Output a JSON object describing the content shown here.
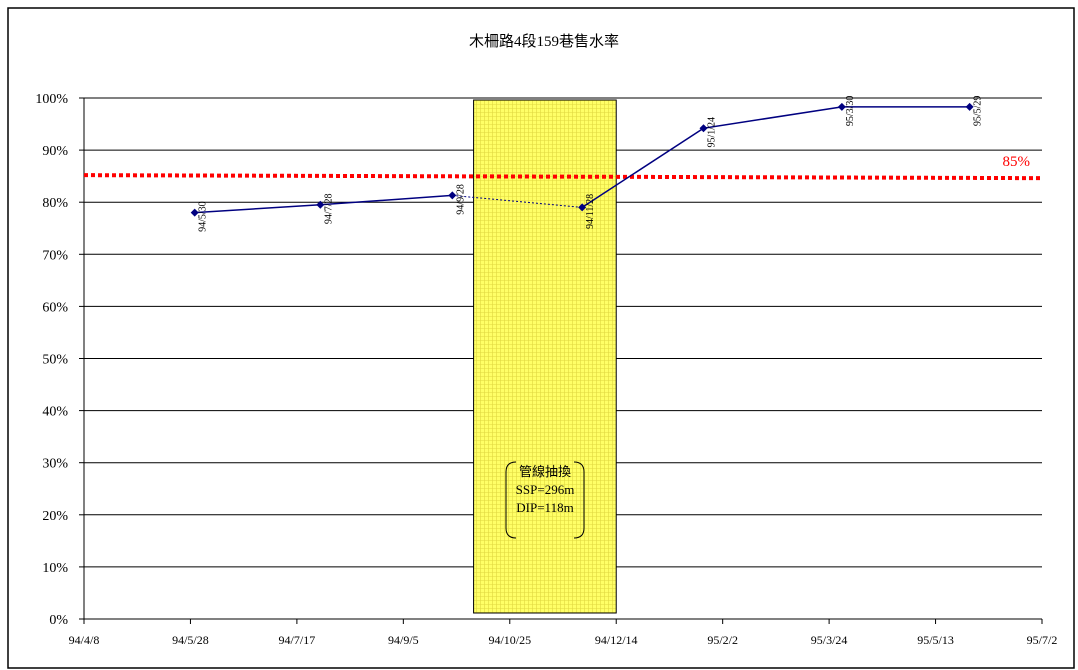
{
  "chart_data": {
    "type": "line",
    "title": "木柵路4段159巷售水率",
    "xlabel": "",
    "ylabel": "",
    "x_ticks": [
      "94/4/8",
      "94/5/28",
      "94/7/17",
      "94/9/5",
      "94/10/25",
      "94/12/14",
      "95/2/2",
      "95/3/24",
      "95/5/13",
      "95/7/2"
    ],
    "y_ticks": [
      "0%",
      "10%",
      "20%",
      "30%",
      "40%",
      "50%",
      "60%",
      "70%",
      "80%",
      "90%",
      "100%"
    ],
    "xlim_days": [
      0,
      450
    ],
    "ylim": [
      0,
      100
    ],
    "grid": "horizontal",
    "series": [
      {
        "color": "#000080",
        "points": [
          {
            "date": "94/5/30",
            "day": 52,
            "value": 78
          },
          {
            "date": "94/7/28",
            "day": 111,
            "value": 79.5
          },
          {
            "date": "94/9/28",
            "day": 173,
            "value": 81.3
          },
          {
            "date": "94/11/28",
            "day": 234,
            "value": 79
          },
          {
            "date": "95/1/24",
            "day": 291,
            "value": 94.2
          },
          {
            "date": "95/3/30",
            "day": 356,
            "value": 98.3
          },
          {
            "date": "95/5/29",
            "day": 416,
            "value": 98.3
          }
        ]
      }
    ],
    "reference_line": {
      "label": "85%",
      "value": 85,
      "color": "#ff0000"
    },
    "highlight_band": {
      "from_day": 183,
      "to_day": 250,
      "color": "#ffff66"
    },
    "annotation": [
      "管線抽換",
      "SSP=296m",
      "DIP=118m"
    ]
  }
}
